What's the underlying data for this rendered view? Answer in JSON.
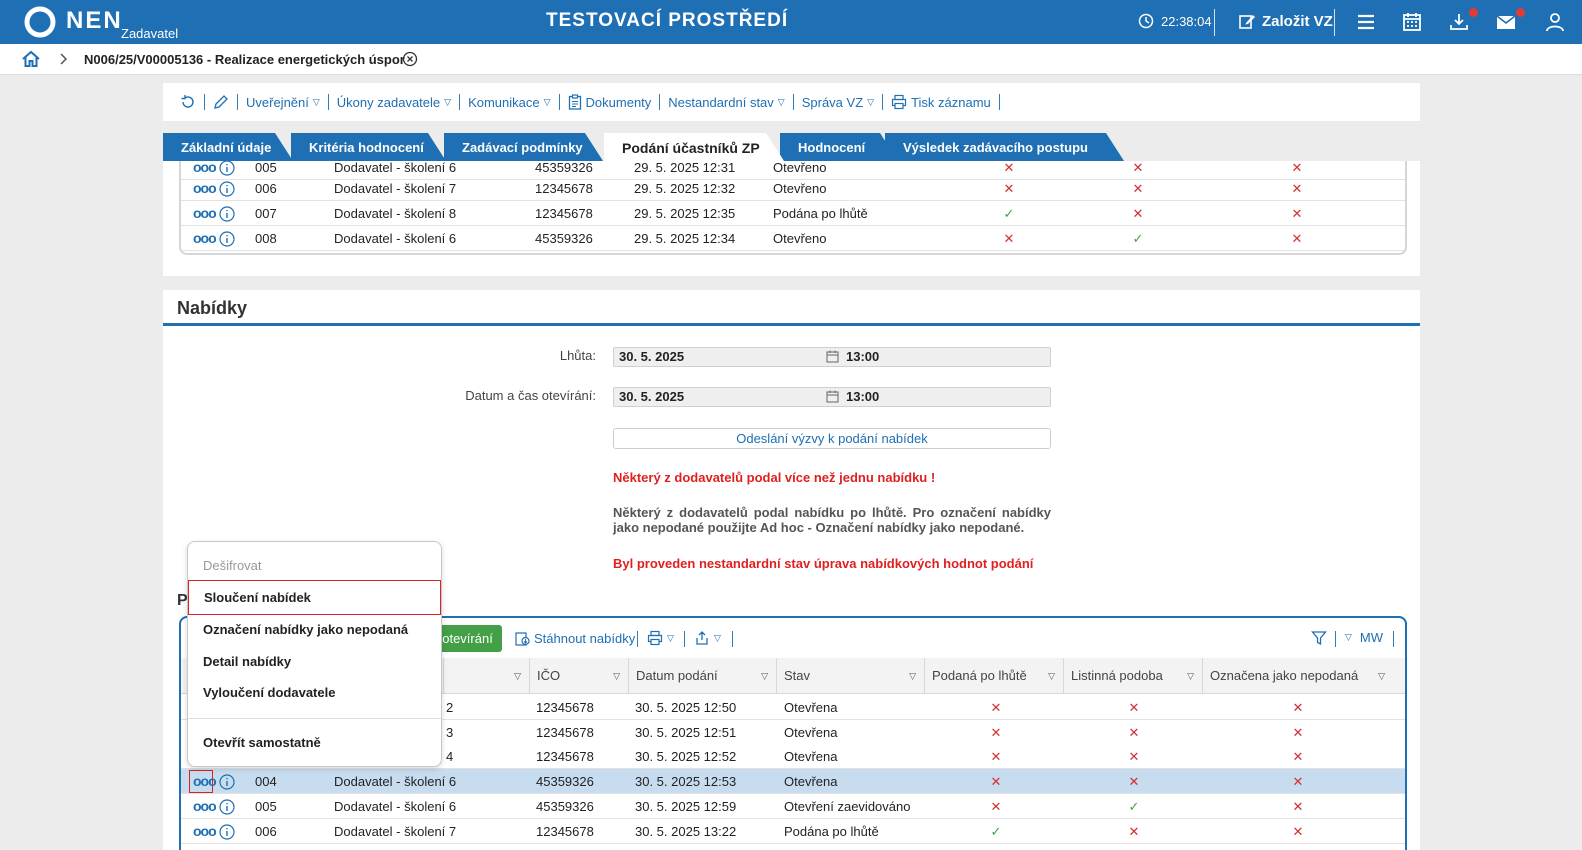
{
  "topbar": {
    "logo_text": "NEN",
    "logo_sub": "Zadavatel",
    "env_title": "TESTOVACÍ PROSTŘEDÍ",
    "clock": "22:38:04",
    "zalozit": "Založit VZ"
  },
  "breadcrumb": {
    "title": "N006/25/V00005136 - Realizace energetických úspor"
  },
  "toolbar": {
    "uverejneni": "Uveřejnění",
    "ukony": "Úkony zadavatele",
    "komunikace": "Komunikace",
    "dokumenty": "Dokumenty",
    "nestandardni": "Nestandardní stav",
    "sprava": "Správa VZ",
    "tisk": "Tisk záznamu"
  },
  "tabs": [
    "Základní údaje",
    "Kritéria hodnocení",
    "Zadávací podmínky",
    "Podání účastníků ZP",
    "Hodnocení",
    "Výsledek zadávacího postupu"
  ],
  "upper_rows": [
    {
      "num": "005",
      "name": "Dodavatel - školení 6",
      "ico": "45359326",
      "date": "29. 5. 2025 12:31",
      "stav": "Otevřeno",
      "m": [
        "x",
        "x",
        "x"
      ]
    },
    {
      "num": "006",
      "name": "Dodavatel - školení 7",
      "ico": "12345678",
      "date": "29. 5. 2025 12:32",
      "stav": "Otevřeno",
      "m": [
        "x",
        "x",
        "x"
      ]
    },
    {
      "num": "007",
      "name": "Dodavatel - školení 8",
      "ico": "12345678",
      "date": "29. 5. 2025 12:35",
      "stav": "Podána po lhůtě",
      "m": [
        "ok",
        "x",
        "x"
      ]
    },
    {
      "num": "008",
      "name": "Dodavatel - školení 6",
      "ico": "45359326",
      "date": "29. 5. 2025 12:34",
      "stav": "Otevřeno",
      "m": [
        "x",
        "ok",
        "x"
      ]
    }
  ],
  "nabidky": {
    "title": "Nabídky",
    "lhuta_label": "Lhůta:",
    "lhuta_date": "30. 5. 2025",
    "lhuta_time": "13:00",
    "otevirani_label": "Datum a čas otevírání:",
    "otevirani_date": "30. 5. 2025",
    "otevirani_time": "13:00",
    "odeslani": "Odeslání výzvy k podání nabídek",
    "msg1": "Některý z dodavatelů podal více než jednu nabídku !",
    "msg2": "Některý z dodavatelů podal nabídku po lhůtě. Pro označení nabídky jako nepodané použijte Ad hoc - Označení nabídky jako nepodané.",
    "msg3": "Byl proveden nestandardní stav úprava nabídkových hodnot podání",
    "section_letter": "P"
  },
  "lower_toolbar": {
    "green_btn": "t otevírání",
    "stahnout": "Stáhnout nabídky",
    "mw": "MW"
  },
  "lower_headers": [
    "IČO",
    "Datum podání",
    "Stav",
    "Podaná po lhůtě",
    "Listinná podoba",
    "Označena jako nepodaná"
  ],
  "lower_rows": [
    {
      "num": "2",
      "name": "",
      "ico": "12345678",
      "date": "30. 5. 2025 12:50",
      "stav": "Otevřena",
      "m": [
        "x",
        "x",
        "x"
      ]
    },
    {
      "num": "3",
      "name": "",
      "ico": "12345678",
      "date": "30. 5. 2025 12:51",
      "stav": "Otevřena",
      "m": [
        "x",
        "x",
        "x"
      ]
    },
    {
      "num": "4",
      "name": "",
      "ico": "12345678",
      "date": "30. 5. 2025 12:52",
      "stav": "Otevřena",
      "m": [
        "x",
        "x",
        "x"
      ]
    },
    {
      "num": "004",
      "name": "Dodavatel - školení 6",
      "ico": "45359326",
      "date": "30. 5. 2025 12:53",
      "stav": "Otevřena",
      "m": [
        "x",
        "x",
        "x"
      ]
    },
    {
      "num": "005",
      "name": "Dodavatel - školení 6",
      "ico": "45359326",
      "date": "30. 5. 2025 12:59",
      "stav": "Otevření zaevidováno",
      "m": [
        "x",
        "ok",
        "x"
      ]
    },
    {
      "num": "006",
      "name": "Dodavatel - školení 7",
      "ico": "12345678",
      "date": "30. 5. 2025 13:22",
      "stav": "Podána po lhůtě",
      "m": [
        "ok",
        "x",
        "x"
      ]
    }
  ],
  "context_menu": {
    "desifrovat": "Dešifrovat",
    "slouceni": "Sloučení nabídek",
    "oznaceni": "Označení nabídky jako nepodaná",
    "detail": "Detail nabídky",
    "vylouceni": "Vyloučení dodavatele",
    "otevrit": "Otevřít samostatně"
  },
  "marks": {
    "x": "✕",
    "ok": "✓",
    "dots": "ooo"
  }
}
